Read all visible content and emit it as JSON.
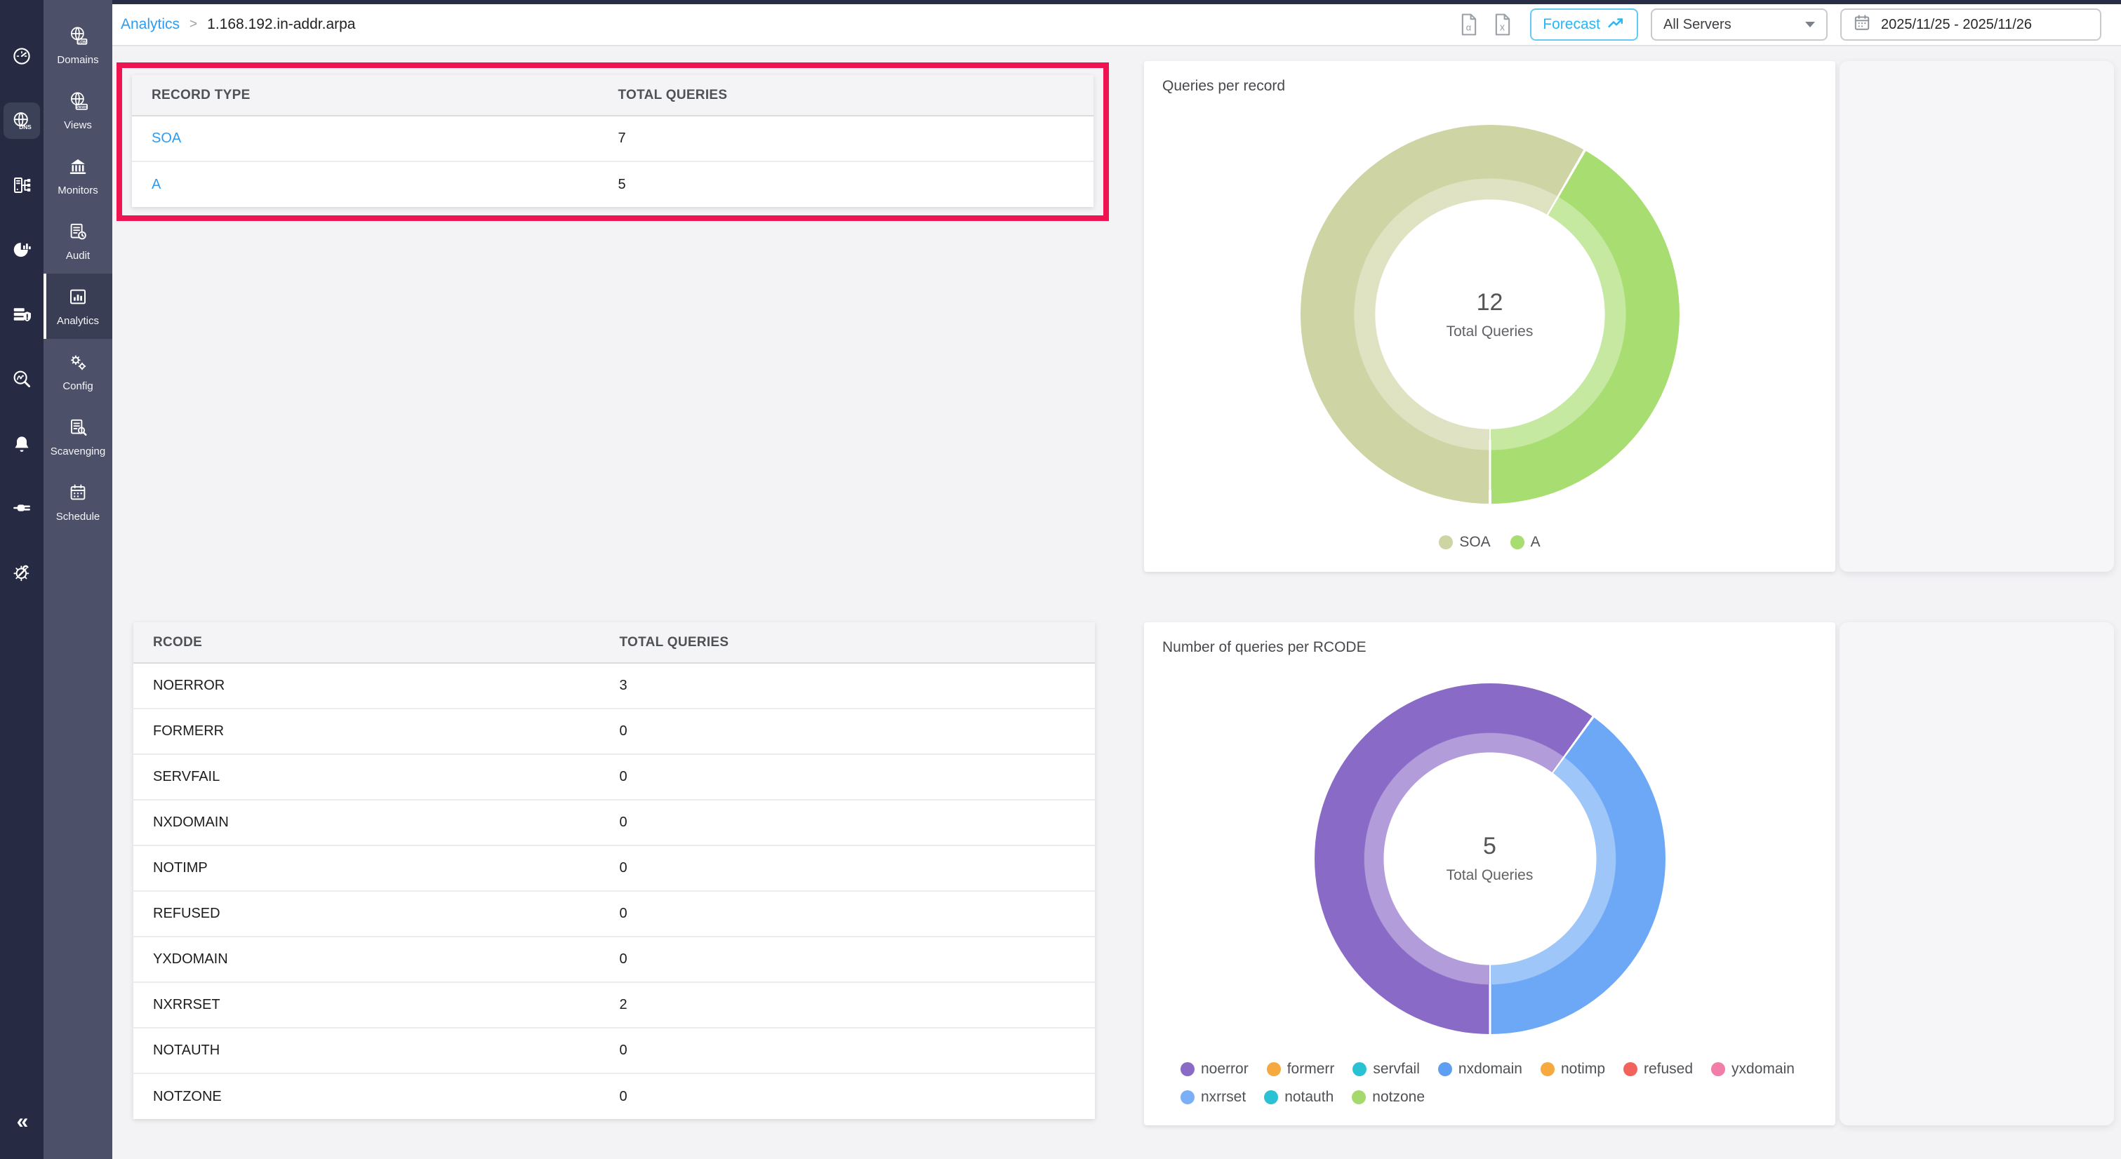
{
  "colors": {
    "link_blue": "#2f9bee",
    "forecast_cyan": "#29b6f6",
    "annotation_red": "#ef1352",
    "rail_bg": "#262a42",
    "subnav_bg": "#4c5068",
    "subnav_active_bg": "#3a3e55",
    "content_bg": "#f3f3f5",
    "placeholder_card_bg": "#f6f6f8"
  },
  "rail": {
    "items": [
      "dashboard",
      "dns",
      "server-tree",
      "pie-chart",
      "server-shield",
      "search-analytics",
      "notifications",
      "plug",
      "tools"
    ],
    "active": "dns",
    "collapse_glyph": "«"
  },
  "subnav": {
    "items": [
      {
        "label": "Domains",
        "active": false
      },
      {
        "label": "Views",
        "active": false
      },
      {
        "label": "Monitors",
        "active": false
      },
      {
        "label": "Audit",
        "active": false
      },
      {
        "label": "Analytics",
        "active": true
      },
      {
        "label": "Config",
        "active": false
      },
      {
        "label": "Scavenging",
        "active": false
      },
      {
        "label": "Schedule",
        "active": false
      }
    ]
  },
  "breadcrumb": {
    "parent": "Analytics",
    "separator": ">",
    "current": "1.168.192.in-addr.arpa"
  },
  "topbar": {
    "forecast_label": "Forecast",
    "server_select_value": "All Servers",
    "date_range_value": "2025/11/25 - 2025/11/26"
  },
  "record_table": {
    "headers": [
      "RECORD TYPE",
      "TOTAL QUERIES"
    ],
    "rows": [
      {
        "type": "SOA",
        "total": "7"
      },
      {
        "type": "A",
        "total": "5"
      }
    ]
  },
  "rcode_table": {
    "headers": [
      "RCODE",
      "TOTAL QUERIES"
    ],
    "rows": [
      [
        "NOERROR",
        "3"
      ],
      [
        "FORMERR",
        "0"
      ],
      [
        "SERVFAIL",
        "0"
      ],
      [
        "NXDOMAIN",
        "0"
      ],
      [
        "NOTIMP",
        "0"
      ],
      [
        "REFUSED",
        "0"
      ],
      [
        "YXDOMAIN",
        "0"
      ],
      [
        "NXRRSET",
        "2"
      ],
      [
        "NOTAUTH",
        "0"
      ],
      [
        "NOTZONE",
        "0"
      ]
    ]
  },
  "chart_data": [
    {
      "type": "donut",
      "title": "Queries per record",
      "center_value": "12",
      "center_label": "Total Queries",
      "start_angle": 180,
      "legend_position": "bottom-center",
      "series": [
        {
          "name": "SOA",
          "value": 7,
          "color": "#ced4a3"
        },
        {
          "name": "A",
          "value": 5,
          "color": "#a8dd71"
        }
      ]
    },
    {
      "type": "donut",
      "title": "Number of queries per RCODE",
      "center_value": "5",
      "center_label": "Total Queries",
      "start_angle": 180,
      "legend_position": "bottom-left",
      "series": [
        {
          "name": "noerror",
          "value": 3,
          "color": "#8a6ac7"
        },
        {
          "name": "nxrrset",
          "value": 2,
          "color": "#6ca8f6"
        }
      ],
      "legend": [
        {
          "label": "noerror",
          "color": "#8a6ac7"
        },
        {
          "label": "formerr",
          "color": "#f5a93e"
        },
        {
          "label": "servfail",
          "color": "#2bc1d4"
        },
        {
          "label": "nxdomain",
          "color": "#5e9ff1"
        },
        {
          "label": "notimp",
          "color": "#f5a93e"
        },
        {
          "label": "refused",
          "color": "#f2635e"
        },
        {
          "label": "yxdomain",
          "color": "#f27da8"
        },
        {
          "label": "nxrrset",
          "color": "#7cb0f6"
        },
        {
          "label": "notauth",
          "color": "#2bc1d4"
        },
        {
          "label": "notzone",
          "color": "#a6d96c"
        }
      ]
    }
  ]
}
